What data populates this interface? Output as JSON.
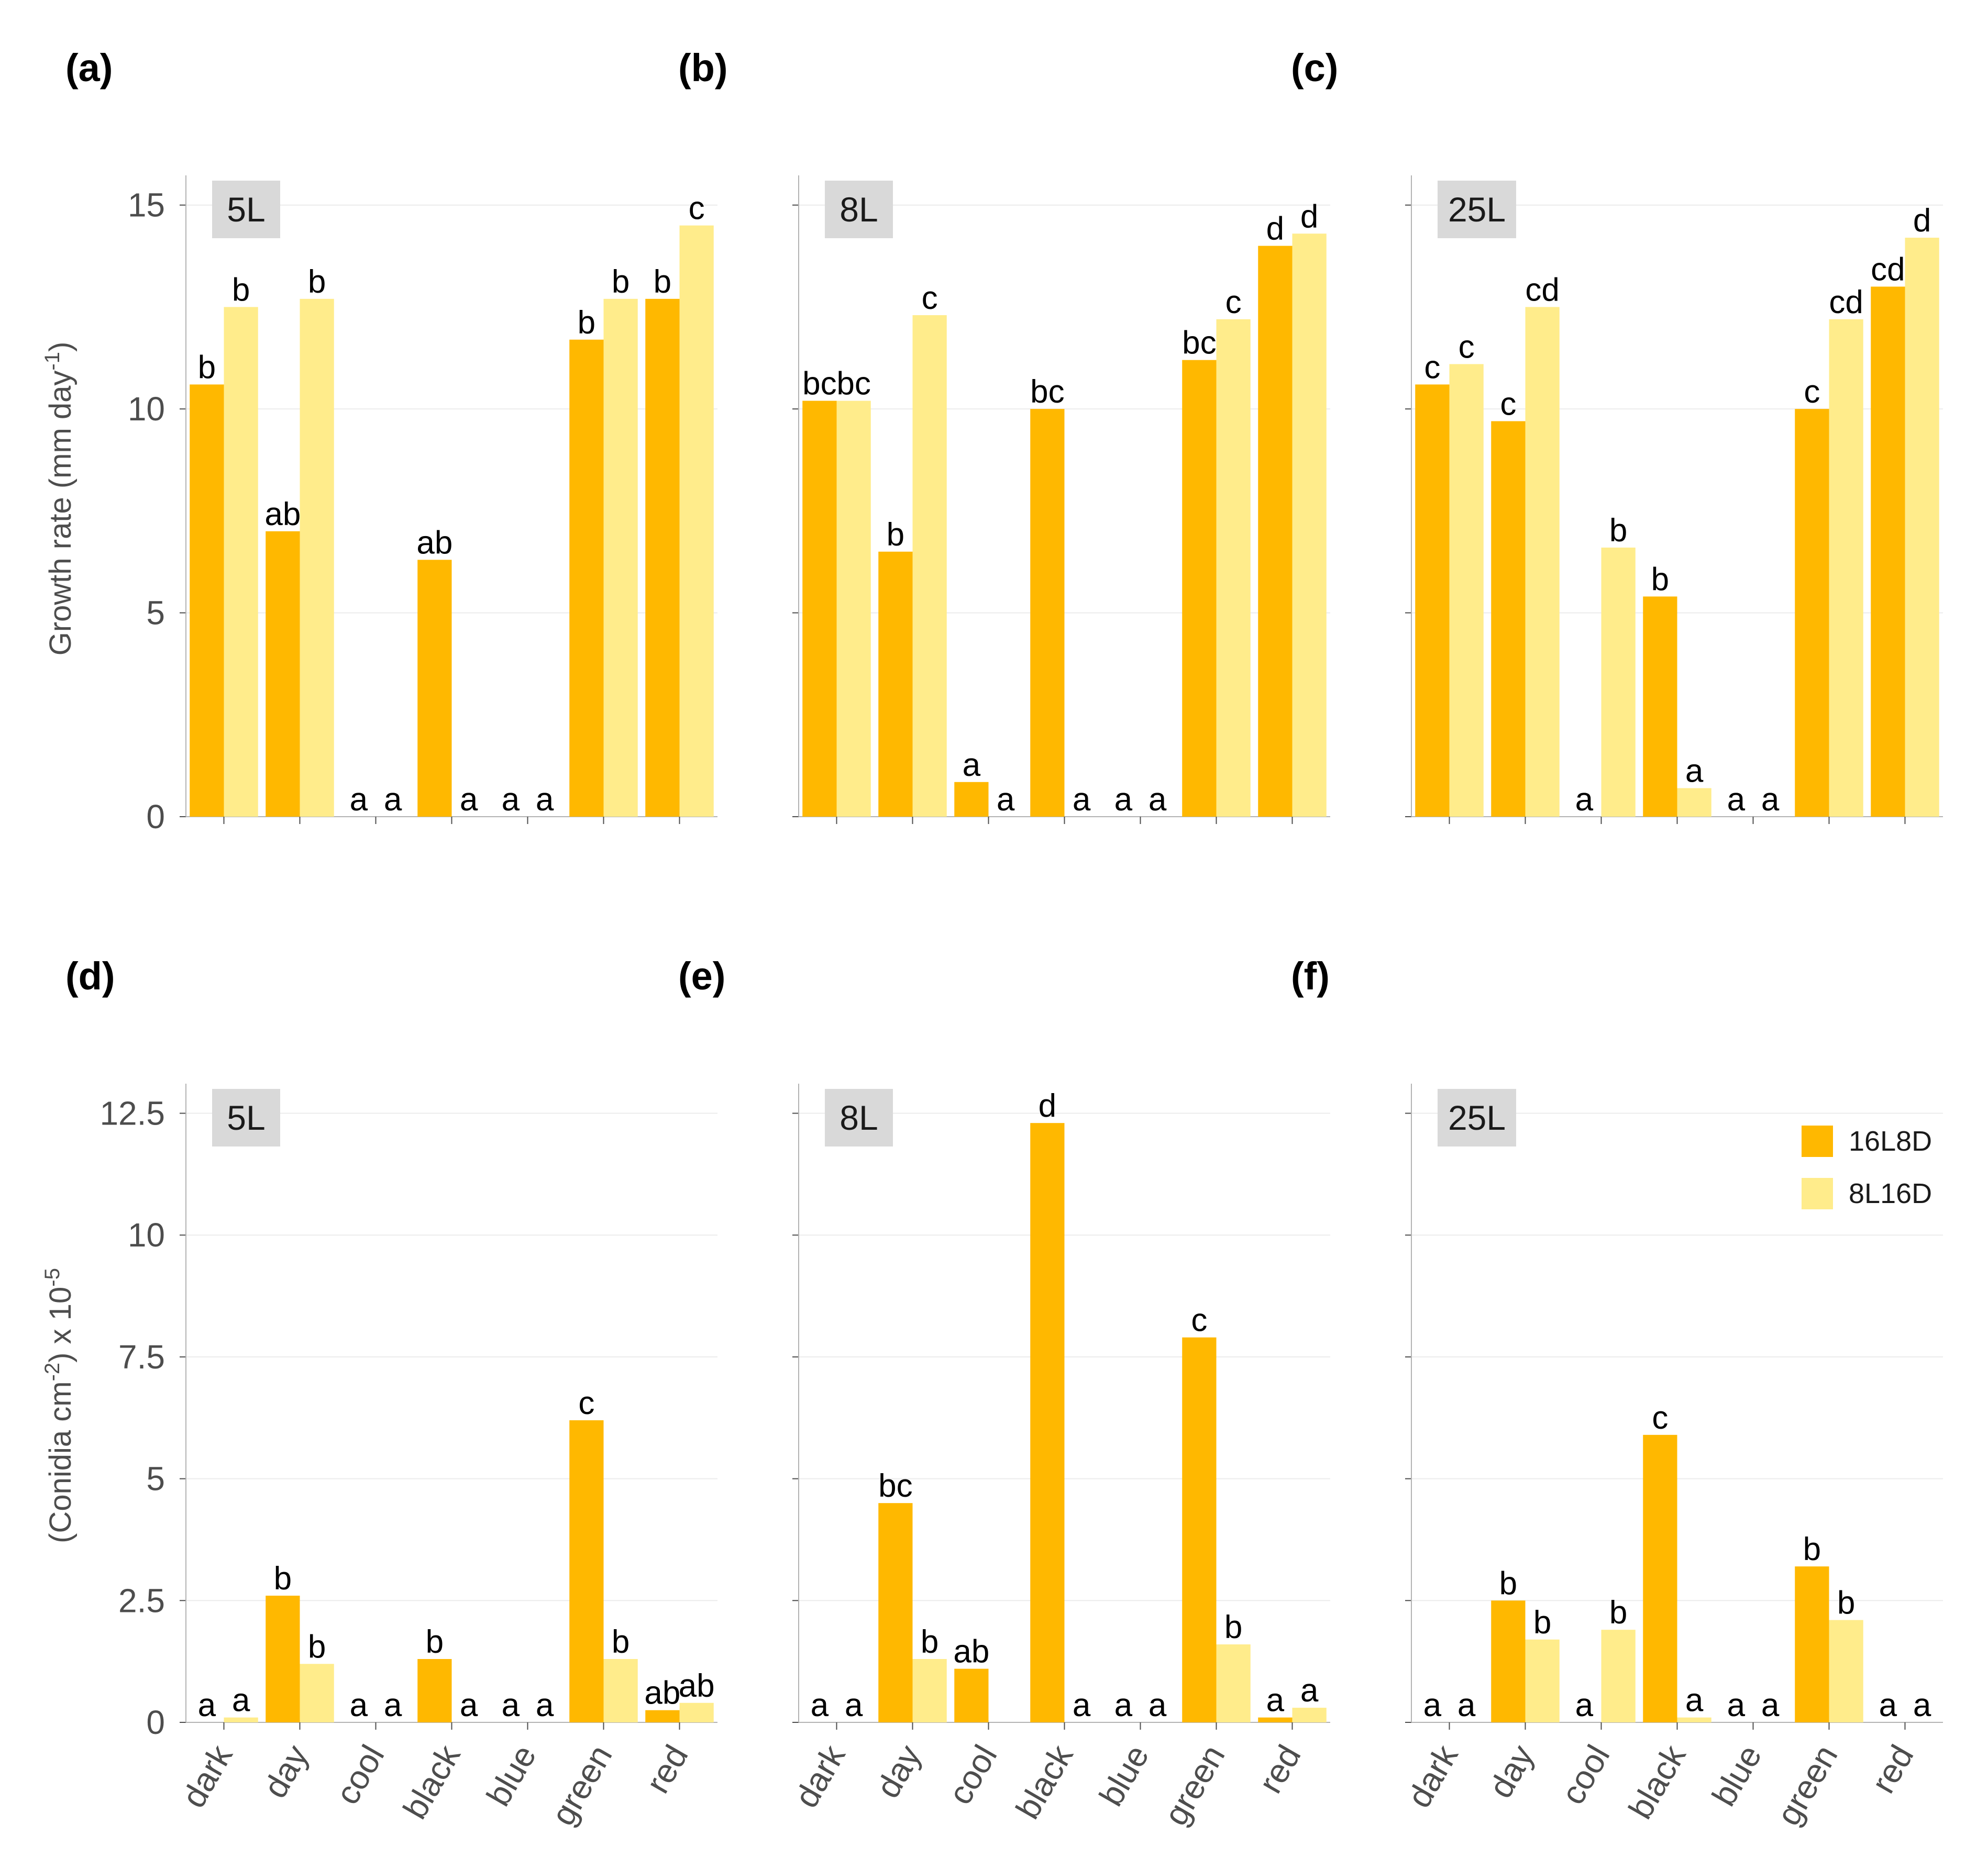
{
  "legend": [
    {
      "name": "16L8D",
      "color": "#FFB800"
    },
    {
      "name": "8L16D",
      "color": "#FFEC8B"
    }
  ],
  "chart_data": [
    {
      "type": "bar",
      "panel": "(a)",
      "strip": "5L",
      "row": "growth",
      "ylabel": "Growth rate (mm day-1)",
      "ylim": [
        0,
        15.6
      ],
      "yticks": [
        "0",
        "5",
        "10",
        "15"
      ],
      "ytick_values": [
        0,
        5,
        10,
        15
      ],
      "categories": [
        "dark",
        "day",
        "cool",
        "black",
        "blue",
        "green",
        "red"
      ],
      "series": [
        {
          "name": "16L8D",
          "values": [
            10.6,
            7.0,
            0,
            6.3,
            0,
            11.7,
            12.7
          ],
          "labels": [
            "b",
            "ab",
            "a",
            "ab",
            "a",
            "b",
            "b"
          ]
        },
        {
          "name": "8L16D",
          "values": [
            12.5,
            12.7,
            0,
            0,
            0,
            12.7,
            14.5
          ],
          "labels": [
            "b",
            "b",
            "a",
            "a",
            "a",
            "b",
            "c"
          ]
        }
      ]
    },
    {
      "type": "bar",
      "panel": "(b)",
      "strip": "8L",
      "row": "growth",
      "ylabel": "",
      "ylim": [
        0,
        15.6
      ],
      "yticks": [
        "0",
        "5",
        "10",
        "15"
      ],
      "ytick_values": [
        0,
        5,
        10,
        15
      ],
      "categories": [
        "dark",
        "day",
        "cool",
        "black",
        "blue",
        "green",
        "red"
      ],
      "series": [
        {
          "name": "16L8D",
          "values": [
            10.2,
            6.5,
            0.85,
            10.0,
            0,
            11.2,
            14.0
          ],
          "labels": [
            "bc",
            "b",
            "a",
            "bc",
            "a",
            "bc",
            "d"
          ]
        },
        {
          "name": "8L16D",
          "values": [
            10.2,
            12.3,
            0,
            0,
            0,
            12.2,
            14.3
          ],
          "labels": [
            "bc",
            "c",
            "a",
            "a",
            "a",
            "c",
            "d"
          ]
        }
      ]
    },
    {
      "type": "bar",
      "panel": "(c)",
      "strip": "25L",
      "row": "growth",
      "ylabel": "",
      "ylim": [
        0,
        15.6
      ],
      "yticks": [
        "0",
        "5",
        "10",
        "15"
      ],
      "ytick_values": [
        0,
        5,
        10,
        15
      ],
      "categories": [
        "dark",
        "day",
        "cool",
        "black",
        "blue",
        "green",
        "red"
      ],
      "series": [
        {
          "name": "16L8D",
          "values": [
            10.6,
            9.7,
            0,
            5.4,
            0,
            10.0,
            13.0
          ],
          "labels": [
            "c",
            "c",
            "a",
            "b",
            "a",
            "c",
            "cd"
          ]
        },
        {
          "name": "8L16D",
          "values": [
            11.1,
            12.5,
            6.6,
            0.7,
            0,
            12.2,
            14.2
          ],
          "labels": [
            "c",
            "cd",
            "b",
            "a",
            "a",
            "cd",
            "d"
          ]
        }
      ]
    },
    {
      "type": "bar",
      "panel": "(d)",
      "strip": "5L",
      "row": "conidia",
      "ylabel": "(Conidia cm-2) x 10-5",
      "ylim": [
        0,
        13.0
      ],
      "yticks": [
        "0",
        "2.5",
        "5",
        "7.5",
        "10",
        "12.5"
      ],
      "ytick_values": [
        0,
        2.5,
        5,
        7.5,
        10,
        12.5
      ],
      "categories": [
        "dark",
        "day",
        "cool",
        "black",
        "blue",
        "green",
        "red"
      ],
      "series": [
        {
          "name": "16L8D",
          "values": [
            0,
            2.6,
            0,
            1.3,
            0,
            6.2,
            0.25
          ],
          "labels": [
            "a",
            "b",
            "a",
            "b",
            "a",
            "c",
            "ab"
          ]
        },
        {
          "name": "8L16D",
          "values": [
            0.1,
            1.2,
            0,
            0,
            0,
            1.3,
            0.4
          ],
          "labels": [
            "a",
            "b",
            "a",
            "a",
            "a",
            "b",
            "ab"
          ]
        }
      ]
    },
    {
      "type": "bar",
      "panel": "(e)",
      "strip": "8L",
      "row": "conidia",
      "ylabel": "",
      "ylim": [
        0,
        13.0
      ],
      "yticks": [
        "0",
        "2.5",
        "5",
        "7.5",
        "10",
        "12.5"
      ],
      "ytick_values": [
        0,
        2.5,
        5,
        7.5,
        10,
        12.5
      ],
      "categories": [
        "dark",
        "day",
        "cool",
        "black",
        "blue",
        "green",
        "red"
      ],
      "series": [
        {
          "name": "16L8D",
          "values": [
            0,
            4.5,
            1.1,
            12.3,
            0,
            7.9,
            0.1
          ],
          "labels": [
            "a",
            "bc",
            "ab",
            "d",
            "a",
            "c",
            "a"
          ]
        },
        {
          "name": "8L16D",
          "values": [
            0,
            1.3,
            0,
            0,
            0,
            1.6,
            0.3
          ],
          "labels": [
            "a",
            "b",
            "",
            "a",
            "a",
            "b",
            "a"
          ]
        }
      ]
    },
    {
      "type": "bar",
      "panel": "(f)",
      "strip": "25L",
      "row": "conidia",
      "ylabel": "",
      "ylim": [
        0,
        13.0
      ],
      "yticks": [
        "0",
        "2.5",
        "5",
        "7.5",
        "10",
        "12.5"
      ],
      "ytick_values": [
        0,
        2.5,
        5,
        7.5,
        10,
        12.5
      ],
      "categories": [
        "dark",
        "day",
        "cool",
        "black",
        "blue",
        "green",
        "red"
      ],
      "series": [
        {
          "name": "16L8D",
          "values": [
            0,
            2.5,
            0,
            5.9,
            0,
            3.2,
            0
          ],
          "labels": [
            "a",
            "b",
            "a",
            "c",
            "a",
            "b",
            "a"
          ]
        },
        {
          "name": "8L16D",
          "values": [
            0,
            1.7,
            1.9,
            0.1,
            0,
            2.1,
            0
          ],
          "labels": [
            "a",
            "b",
            "b",
            "a",
            "a",
            "b",
            "a"
          ]
        }
      ]
    }
  ]
}
